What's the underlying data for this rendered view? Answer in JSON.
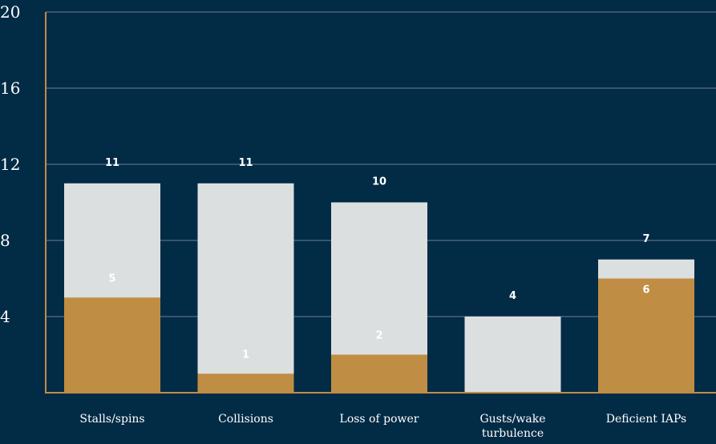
{
  "chart_data": {
    "type": "bar",
    "stacked": false,
    "overlapping": true,
    "categories": [
      "Stalls/spins",
      "Collisions",
      "Loss of power",
      "Gusts/wake turbulence",
      "Deficient IAPs"
    ],
    "category_lines": [
      [
        "Stalls/spins"
      ],
      [
        "Collisions"
      ],
      [
        "Loss of power"
      ],
      [
        "Gusts/wake",
        "turbulence"
      ],
      [
        "Deficient IAPs"
      ]
    ],
    "series": [
      {
        "values": [
          11,
          11,
          10,
          4,
          7
        ],
        "color": "#dcdfdf"
      },
      {
        "values": [
          5,
          1,
          2,
          0,
          6
        ],
        "color": "#c08d44"
      }
    ],
    "total_labels": [
      "11",
      "11",
      "10",
      "4",
      "7"
    ],
    "sub_labels": [
      "5",
      "1",
      "2",
      "",
      "6"
    ],
    "yticks": [
      4,
      8,
      12,
      16,
      20
    ],
    "ylim": [
      0,
      20
    ],
    "grid": true,
    "legend": "none",
    "title": "",
    "xlabel": "",
    "ylabel": "",
    "colors": {
      "background": "#022b46",
      "axis": "#c08d44",
      "grid": "#6b8294",
      "text": "#ffffff"
    }
  }
}
